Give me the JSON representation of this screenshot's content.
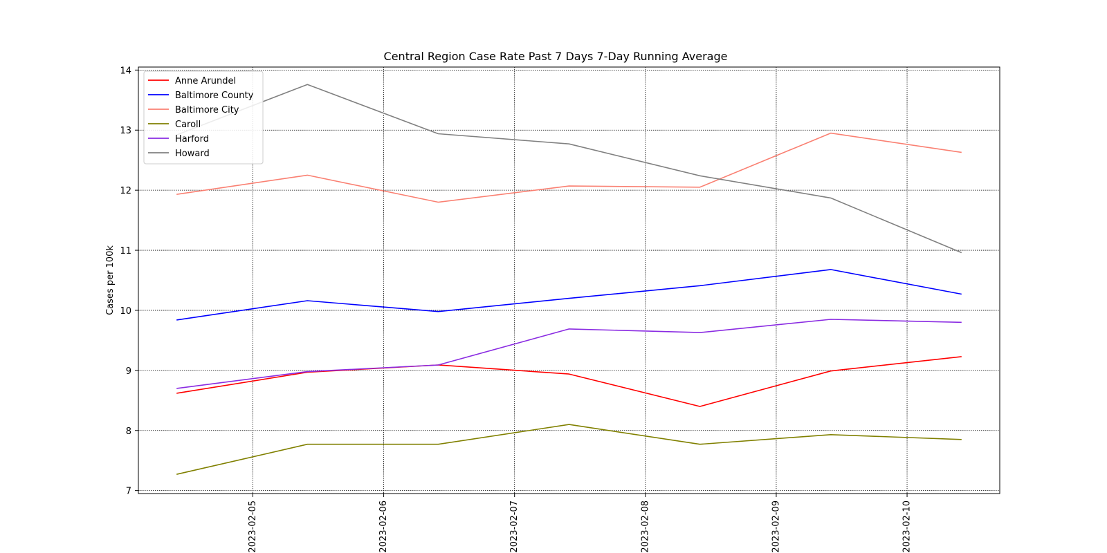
{
  "chart_data": {
    "type": "line",
    "title": "Central Region Case Rate  Past 7 Days 7-Day Running Average",
    "xlabel": "",
    "ylabel": "Cases per 100k",
    "x": [
      "2023-02-04 10:00",
      "2023-02-05 10:00",
      "2023-02-06 10:00",
      "2023-02-07 10:00",
      "2023-02-08 10:00",
      "2023-02-09 10:00",
      "2023-02-10 10:00"
    ],
    "xticks": [
      "2023-02-05",
      "2023-02-06",
      "2023-02-07",
      "2023-02-08",
      "2023-02-09",
      "2023-02-10"
    ],
    "xlim": [
      "2023-02-04 03:00",
      "2023-02-10 17:00"
    ],
    "ylim": [
      6.95,
      14.05
    ],
    "yticks": [
      7,
      8,
      9,
      10,
      11,
      12,
      13,
      14
    ],
    "grid": true,
    "legend_position": "upper-left",
    "series": [
      {
        "name": "Anne Arundel",
        "color": "#ff0000",
        "values": [
          8.62,
          8.97,
          9.09,
          8.94,
          8.4,
          8.99,
          9.23
        ]
      },
      {
        "name": "Baltimore County",
        "color": "#0000ff",
        "values": [
          9.84,
          10.16,
          9.98,
          10.2,
          10.41,
          10.68,
          10.27
        ]
      },
      {
        "name": "Baltimore City",
        "color": "#fa8072",
        "values": [
          11.93,
          12.25,
          11.8,
          12.07,
          12.05,
          12.95,
          12.63
        ]
      },
      {
        "name": "Caroll",
        "color": "#808000",
        "values": [
          7.27,
          7.77,
          7.77,
          8.1,
          7.77,
          7.93,
          7.85
        ]
      },
      {
        "name": "Harford",
        "color": "#8a2be2",
        "values": [
          8.7,
          8.98,
          9.09,
          9.69,
          9.63,
          9.85,
          9.8
        ]
      },
      {
        "name": "Howard",
        "color": "#808080",
        "values": [
          12.92,
          13.76,
          12.94,
          12.77,
          12.24,
          11.87,
          10.96
        ]
      }
    ]
  }
}
